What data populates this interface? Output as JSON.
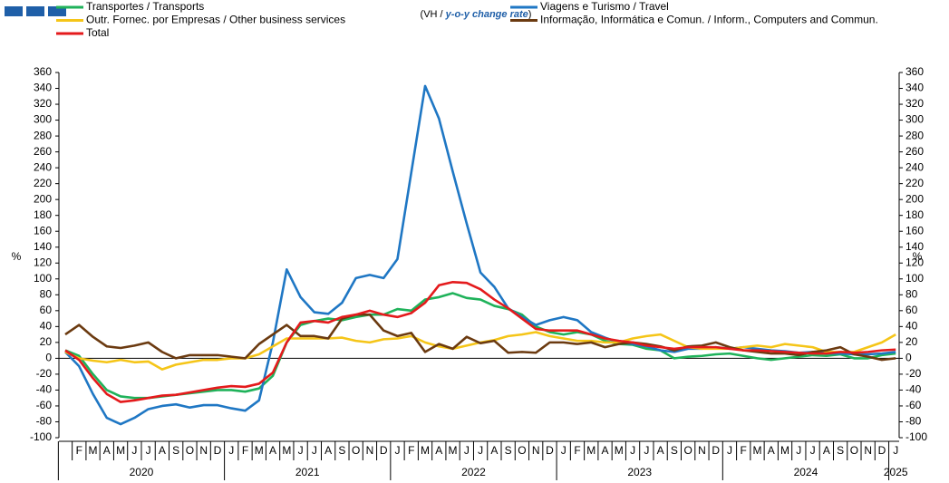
{
  "chart_data": {
    "type": "line",
    "subtitle": {
      "prefix": "(VH / ",
      "emphasis": "y-o-y change rate",
      "suffix": ")"
    },
    "y_label": "%",
    "y2_label": "%",
    "categories": [
      null,
      "F",
      "M",
      "A",
      "M",
      "J",
      "J",
      "A",
      "S",
      "O",
      "N",
      "D",
      "J",
      "F",
      "M",
      "A",
      "M",
      "J",
      "J",
      "A",
      "S",
      "O",
      "N",
      "D",
      "J",
      "F",
      "M",
      "A",
      "M",
      "J",
      "J",
      "A",
      "S",
      "O",
      "N",
      "D",
      "J",
      "F",
      "M",
      "A",
      "M",
      "J",
      "J",
      "A",
      "S",
      "O",
      "N",
      "D",
      "J",
      "F",
      "M",
      "A",
      "M",
      "J",
      "J",
      "A",
      "S",
      "O",
      "N",
      "D",
      "J"
    ],
    "years": [
      "2020",
      "2021",
      "2022",
      "2023",
      "2024",
      "2025"
    ],
    "ylim": [
      -100,
      360
    ],
    "yticks": [
      -100,
      -80,
      -60,
      -40,
      -20,
      0,
      20,
      40,
      60,
      80,
      100,
      120,
      140,
      160,
      180,
      200,
      220,
      240,
      260,
      280,
      300,
      320,
      340,
      360
    ],
    "y2lim": [
      -100,
      360
    ],
    "y2ticks": [
      -100,
      -80,
      -60,
      -40,
      -20,
      0,
      20,
      40,
      60,
      80,
      100,
      120,
      140,
      160,
      180,
      200,
      220,
      240,
      260,
      280,
      300,
      320,
      340,
      360
    ],
    "series": [
      {
        "name": "Transportes / Transports",
        "color": "#1fb25a",
        "values": [
          10,
          3,
          -20,
          -40,
          -48,
          -50,
          -50,
          -48,
          -46,
          -44,
          -42,
          -40,
          -40,
          -42,
          -38,
          -22,
          20,
          42,
          47,
          50,
          48,
          52,
          55,
          55,
          62,
          60,
          74,
          77,
          82,
          76,
          74,
          66,
          62,
          55,
          40,
          33,
          30,
          33,
          30,
          22,
          18,
          17,
          12,
          10,
          0,
          2,
          3,
          5,
          6,
          3,
          0,
          -2,
          0,
          2,
          4,
          3,
          5,
          0,
          0,
          4,
          6
        ]
      },
      {
        "name": "Viagens e Turismo / Travel",
        "color": "#1f77c4",
        "values": [
          8,
          -10,
          -45,
          -75,
          -83,
          -75,
          -64,
          -60,
          -58,
          -62,
          -59,
          -59,
          -63,
          -66,
          -53,
          20,
          112,
          77,
          58,
          56,
          70,
          101,
          105,
          101,
          125,
          234,
          343,
          302,
          235,
          170,
          108,
          90,
          63,
          52,
          42,
          48,
          52,
          48,
          33,
          26,
          20,
          18,
          15,
          10,
          8,
          12,
          12,
          14,
          12,
          14,
          12,
          10,
          9,
          7,
          8,
          6,
          6,
          5,
          5,
          6,
          8
        ]
      },
      {
        "name": "Outr. Fornec. por Empresas / Other business services",
        "color": "#f5c518",
        "values": [
          8,
          0,
          -3,
          -5,
          -2,
          -5,
          -4,
          -14,
          -8,
          -5,
          -2,
          -2,
          0,
          0,
          5,
          15,
          25,
          25,
          25,
          25,
          26,
          22,
          20,
          24,
          25,
          28,
          20,
          15,
          12,
          16,
          20,
          23,
          28,
          30,
          33,
          28,
          25,
          22,
          22,
          20,
          20,
          25,
          28,
          30,
          22,
          14,
          12,
          12,
          12,
          14,
          16,
          14,
          18,
          16,
          14,
          8,
          8,
          8,
          14,
          20,
          30
        ]
      },
      {
        "name": "Informação, Informática e Comun. / Inform., Computers and Commun.",
        "color": "#6b3a10",
        "values": [
          30,
          42,
          27,
          15,
          13,
          16,
          20,
          8,
          0,
          4,
          4,
          4,
          2,
          0,
          18,
          30,
          42,
          28,
          28,
          25,
          50,
          55,
          55,
          35,
          28,
          32,
          8,
          18,
          12,
          27,
          19,
          22,
          7,
          8,
          7,
          20,
          20,
          18,
          20,
          14,
          18,
          20,
          18,
          15,
          10,
          15,
          16,
          20,
          14,
          10,
          8,
          6,
          6,
          4,
          8,
          10,
          14,
          5,
          2,
          -2,
          0
        ]
      },
      {
        "name": "Total",
        "color": "#e41a1c",
        "values": [
          10,
          -2,
          -25,
          -45,
          -55,
          -53,
          -50,
          -47,
          -46,
          -43,
          -40,
          -37,
          -35,
          -36,
          -32,
          -18,
          20,
          45,
          47,
          45,
          52,
          55,
          60,
          55,
          52,
          57,
          70,
          92,
          96,
          95,
          87,
          74,
          63,
          50,
          37,
          35,
          35,
          35,
          30,
          25,
          22,
          20,
          16,
          14,
          12,
          14,
          14,
          14,
          12,
          10,
          10,
          9,
          8,
          7,
          6,
          6,
          8,
          7,
          8,
          10,
          11
        ]
      }
    ]
  }
}
